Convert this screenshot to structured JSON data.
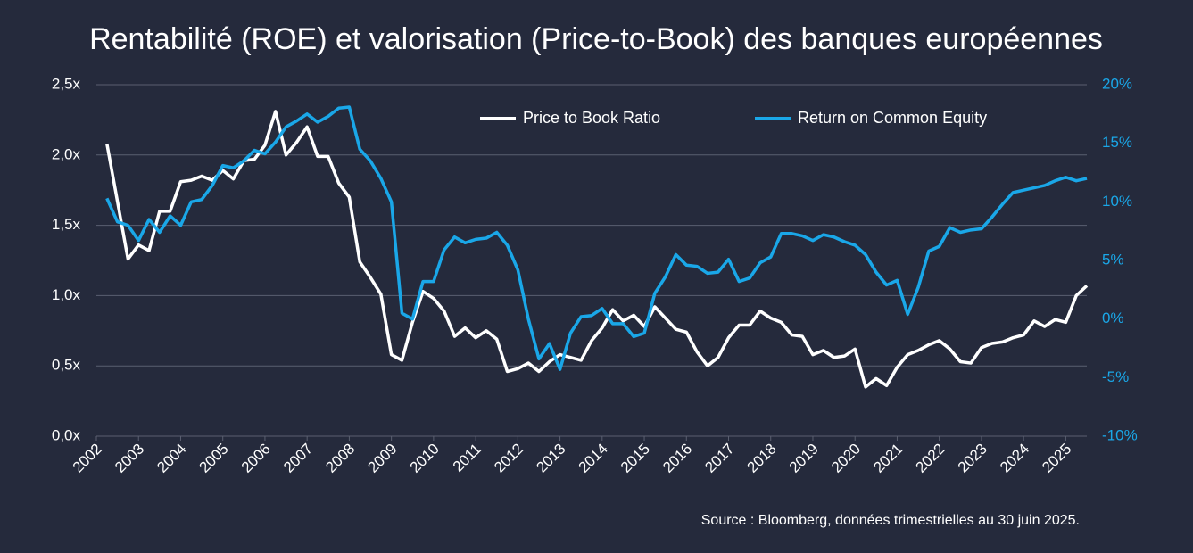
{
  "chart_data": {
    "type": "line",
    "title": "Rentabilité (ROE) et valorisation (Price-to-Book) des banques européennes",
    "source": "Source : Bloomberg, données trimestrielles au 30 juin 2025.",
    "legend": "upper center",
    "grid": true,
    "x": [
      2002.25,
      2002.5,
      2002.75,
      2003,
      2003.25,
      2003.5,
      2003.75,
      2004,
      2004.25,
      2004.5,
      2004.75,
      2005,
      2005.25,
      2005.5,
      2005.75,
      2006,
      2006.25,
      2006.5,
      2006.75,
      2007,
      2007.25,
      2007.5,
      2007.75,
      2008,
      2008.25,
      2008.5,
      2008.75,
      2009,
      2009.25,
      2009.5,
      2009.75,
      2010,
      2010.25,
      2010.5,
      2010.75,
      2011,
      2011.25,
      2011.5,
      2011.75,
      2012,
      2012.25,
      2012.5,
      2012.75,
      2013,
      2013.25,
      2013.5,
      2013.75,
      2014,
      2014.25,
      2014.5,
      2014.75,
      2015,
      2015.25,
      2015.5,
      2015.75,
      2016,
      2016.25,
      2016.5,
      2016.75,
      2017,
      2017.25,
      2017.5,
      2017.75,
      2018,
      2018.25,
      2018.5,
      2018.75,
      2019,
      2019.25,
      2019.5,
      2019.75,
      2020,
      2020.25,
      2020.5,
      2020.75,
      2021,
      2021.25,
      2021.5,
      2021.75,
      2022,
      2022.25,
      2022.5,
      2022.75,
      2023,
      2023.25,
      2023.5,
      2023.75,
      2024,
      2024.25,
      2024.5,
      2024.75,
      2025,
      2025.25,
      2025.5
    ],
    "xlim": [
      2002,
      2025.5
    ],
    "xticks": [
      2002,
      2003,
      2004,
      2005,
      2006,
      2007,
      2008,
      2009,
      2010,
      2011,
      2012,
      2013,
      2014,
      2015,
      2016,
      2017,
      2018,
      2019,
      2020,
      2021,
      2022,
      2023,
      2024,
      2025
    ],
    "ylim": [
      0,
      2.5
    ],
    "yticks": [
      {
        "value": 0,
        "label": "0,0x"
      },
      {
        "value": 0.5,
        "label": "0,5x"
      },
      {
        "value": 1,
        "label": "1,0x"
      },
      {
        "value": 1.5,
        "label": "1,5x"
      },
      {
        "value": 2,
        "label": "2,0x"
      },
      {
        "value": 2.5,
        "label": "2,5x"
      }
    ],
    "y2lim": [
      -10,
      20
    ],
    "y2ticks": [
      {
        "value": -10,
        "label": "-10%"
      },
      {
        "value": -5,
        "label": "-5%"
      },
      {
        "value": 0,
        "label": "0%"
      },
      {
        "value": 5,
        "label": "5%"
      },
      {
        "value": 10,
        "label": "10%"
      },
      {
        "value": 15,
        "label": "15%"
      },
      {
        "value": 20,
        "label": "20%"
      }
    ],
    "series": [
      {
        "name": "Price to Book Ratio",
        "color": "#ffffff",
        "axis": "y",
        "values": [
          2.08,
          1.67,
          1.26,
          1.36,
          1.32,
          1.6,
          1.6,
          1.81,
          1.82,
          1.85,
          1.82,
          1.89,
          1.83,
          1.96,
          1.97,
          2.07,
          2.31,
          2.0,
          2.09,
          2.2,
          1.99,
          1.99,
          1.8,
          1.7,
          1.24,
          1.13,
          1.01,
          0.58,
          0.54,
          0.81,
          1.03,
          0.98,
          0.89,
          0.71,
          0.77,
          0.7,
          0.75,
          0.69,
          0.46,
          0.48,
          0.52,
          0.46,
          0.53,
          0.58,
          0.56,
          0.54,
          0.68,
          0.77,
          0.9,
          0.82,
          0.86,
          0.78,
          0.92,
          0.84,
          0.76,
          0.74,
          0.6,
          0.5,
          0.56,
          0.7,
          0.79,
          0.79,
          0.89,
          0.84,
          0.81,
          0.72,
          0.71,
          0.58,
          0.61,
          0.56,
          0.57,
          0.62,
          0.35,
          0.41,
          0.36,
          0.49,
          0.58,
          0.61,
          0.65,
          0.68,
          0.62,
          0.53,
          0.52,
          0.63,
          0.66,
          0.67,
          0.7,
          0.72,
          0.82,
          0.78,
          0.83,
          0.81,
          1.0,
          1.07
        ]
      },
      {
        "name": "Return on Common Equity",
        "color": "#1aa7e8",
        "axis": "y2",
        "values": [
          10.3,
          8.3,
          8.0,
          6.7,
          8.5,
          7.4,
          8.8,
          8.0,
          10.0,
          10.2,
          11.4,
          13.1,
          12.9,
          13.5,
          14.4,
          14.1,
          15.1,
          16.4,
          16.9,
          17.5,
          16.8,
          17.3,
          18.0,
          18.1,
          14.5,
          13.5,
          12.0,
          10.0,
          0.5,
          0.0,
          3.2,
          3.2,
          5.9,
          7.0,
          6.5,
          6.8,
          6.9,
          7.4,
          6.3,
          4.2,
          0.0,
          -3.4,
          -2.1,
          -4.3,
          -1.2,
          0.2,
          0.3,
          0.9,
          -0.4,
          -0.4,
          -1.5,
          -1.2,
          2.2,
          3.6,
          5.5,
          4.6,
          4.5,
          3.9,
          4.0,
          5.1,
          3.2,
          3.5,
          4.8,
          5.3,
          7.3,
          7.3,
          7.1,
          6.7,
          7.2,
          7.0,
          6.6,
          6.3,
          5.5,
          4.0,
          2.9,
          3.3,
          0.4,
          2.7,
          5.8,
          6.2,
          7.8,
          7.4,
          7.6,
          7.7,
          8.7,
          9.8,
          10.8,
          11.0,
          11.2,
          11.4,
          11.8,
          12.1,
          11.8,
          12.0
        ]
      }
    ]
  }
}
